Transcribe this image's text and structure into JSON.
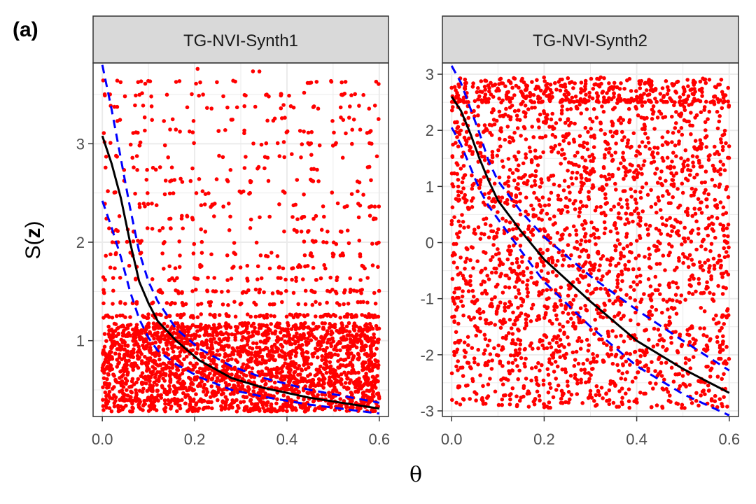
{
  "figure_label": "(a)",
  "x_axis_title": "θ",
  "y_axis_title": {
    "prefix": "S(",
    "bold": "z",
    "suffix": ")"
  },
  "colors": {
    "points": "#ff0000",
    "fit_line": "#000000",
    "bands": "#0000ff",
    "strip_background": "#d9d9d9",
    "grid": "#ebebeb",
    "panel_border": "#333333"
  },
  "chart_data": [
    {
      "type": "scatter",
      "title": "TG-NVI-Synth1",
      "xlim": [
        -0.02,
        0.62
      ],
      "ylim": [
        0.23,
        3.82
      ],
      "x_ticks": [
        0.0,
        0.2,
        0.4,
        0.6
      ],
      "x_tick_labels": [
        "0.0",
        "0.2",
        "0.4",
        "0.6"
      ],
      "y_ticks": [
        1,
        2,
        3
      ],
      "y_tick_labels": [
        "1",
        "2",
        "3"
      ],
      "grid": true,
      "points_description": {
        "x_range": [
          0.0,
          0.6
        ],
        "dense_y_range": [
          0.28,
          1.18
        ],
        "sparse_y_range": [
          1.18,
          3.72
        ]
      },
      "series": [
        {
          "style": "solid",
          "x": [
            0.0,
            0.02,
            0.04,
            0.06,
            0.08,
            0.1,
            0.12,
            0.16,
            0.21,
            0.28,
            0.35,
            0.45,
            0.6
          ],
          "y": [
            3.08,
            2.8,
            2.45,
            2.0,
            1.6,
            1.38,
            1.2,
            1.0,
            0.8,
            0.62,
            0.52,
            0.42,
            0.31
          ]
        },
        {
          "style": "dashed",
          "x": [
            0.0,
            0.02,
            0.04,
            0.06,
            0.08,
            0.1,
            0.12,
            0.16,
            0.21,
            0.28,
            0.35,
            0.45,
            0.6
          ],
          "y": [
            3.8,
            3.35,
            2.85,
            2.35,
            1.9,
            1.6,
            1.4,
            1.12,
            0.92,
            0.74,
            0.62,
            0.5,
            0.37
          ]
        },
        {
          "style": "dashed",
          "x": [
            0.0,
            0.02,
            0.04,
            0.06,
            0.08,
            0.1,
            0.12,
            0.16,
            0.21,
            0.28,
            0.35,
            0.45,
            0.6
          ],
          "y": [
            2.42,
            2.15,
            1.85,
            1.5,
            1.22,
            1.03,
            0.9,
            0.76,
            0.63,
            0.5,
            0.43,
            0.35,
            0.26
          ]
        }
      ]
    },
    {
      "type": "scatter",
      "title": "TG-NVI-Synth2",
      "xlim": [
        -0.02,
        0.62
      ],
      "ylim": [
        -3.1,
        3.2
      ],
      "x_ticks": [
        0.0,
        0.2,
        0.4,
        0.6
      ],
      "x_tick_labels": [
        "0.0",
        "0.2",
        "0.4",
        "0.6"
      ],
      "y_ticks": [
        -3,
        -2,
        -1,
        0,
        1,
        2,
        3
      ],
      "y_tick_labels": [
        "-3",
        "-2",
        "-1",
        "0",
        "1",
        "2",
        "3"
      ],
      "grid": true,
      "points_description": {
        "x_range": [
          0.0,
          0.6
        ],
        "dense_y_range": [
          -2.95,
          2.5
        ],
        "sparse_y_range": [
          2.5,
          2.95
        ]
      },
      "series": [
        {
          "style": "solid",
          "x": [
            0.0,
            0.02,
            0.04,
            0.06,
            0.08,
            0.1,
            0.15,
            0.2,
            0.3,
            0.4,
            0.5,
            0.6
          ],
          "y": [
            2.6,
            2.35,
            1.95,
            1.5,
            1.1,
            0.75,
            0.2,
            -0.3,
            -1.05,
            -1.75,
            -2.25,
            -2.68
          ]
        },
        {
          "style": "dashed",
          "x": [
            0.0,
            0.02,
            0.04,
            0.06,
            0.08,
            0.1,
            0.15,
            0.2,
            0.3,
            0.4,
            0.5,
            0.6
          ],
          "y": [
            3.15,
            2.85,
            2.4,
            1.95,
            1.45,
            1.1,
            0.55,
            0.1,
            -0.6,
            -1.2,
            -1.75,
            -2.28
          ]
        },
        {
          "style": "dashed",
          "x": [
            0.0,
            0.02,
            0.04,
            0.06,
            0.08,
            0.1,
            0.15,
            0.2,
            0.3,
            0.4,
            0.5,
            0.6
          ],
          "y": [
            2.05,
            1.75,
            1.35,
            0.95,
            0.65,
            0.42,
            -0.15,
            -0.7,
            -1.5,
            -2.2,
            -2.7,
            -3.08
          ]
        }
      ]
    }
  ]
}
